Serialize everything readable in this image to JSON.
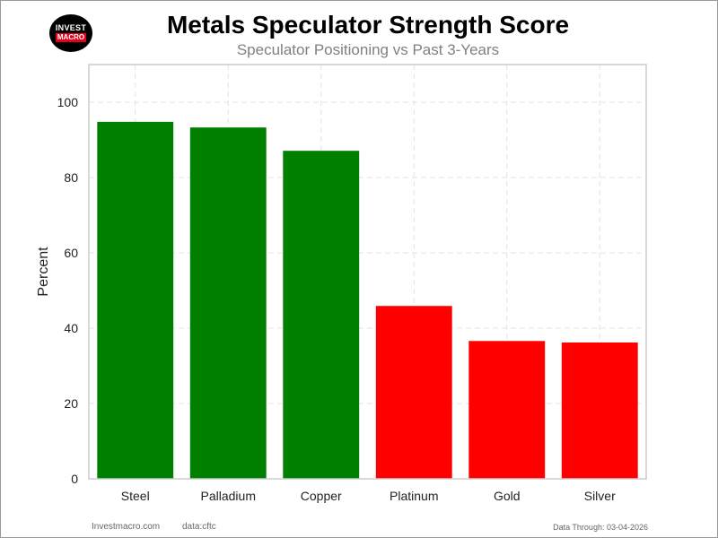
{
  "header": {
    "title": "Metals Speculator Strength Score",
    "subtitle": "Speculator Positioning vs Past 3-Years"
  },
  "logo": {
    "line1": "INVEST",
    "line2": "MACRO"
  },
  "footer": {
    "site": "Investmacro.com",
    "source": "data:cftc",
    "date_through": "Data Through: 03-04-2026"
  },
  "chart_data": {
    "type": "bar",
    "title": "Metals Speculator Strength Score",
    "subtitle": "Speculator Positioning vs Past 3-Years",
    "xlabel": "",
    "ylabel": "Percent",
    "categories": [
      "Steel",
      "Palladium",
      "Copper",
      "Platinum",
      "Gold",
      "Silver"
    ],
    "values": [
      94.8,
      93.3,
      87.1,
      45.9,
      36.6,
      36.2
    ],
    "colors": [
      "#008000",
      "#008000",
      "#008000",
      "#ff0000",
      "#ff0000",
      "#ff0000"
    ],
    "ylim": [
      0,
      110
    ],
    "yticks": [
      0,
      20,
      40,
      60,
      80,
      100
    ],
    "grid": true,
    "grid_style": "dashed"
  }
}
